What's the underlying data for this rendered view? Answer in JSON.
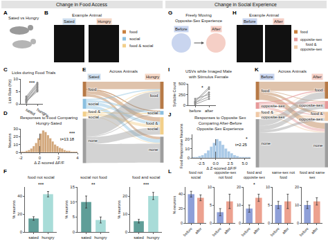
{
  "sections": [
    "Change in Food Access",
    "Change in Social Experience"
  ],
  "diagrams": [
    {
      "panel": "A",
      "type": "illustration",
      "title": "Sated vs Hungry"
    },
    {
      "panel": "B",
      "type": "images",
      "title": "Example Animal",
      "conditions": [
        {
          "name": "Sated",
          "color": "#cfdff0"
        },
        {
          "name": "Hungry",
          "color": "#f6d8c6"
        }
      ],
      "legend": [
        {
          "name": "food",
          "color": "#c9803e"
        },
        {
          "name": "social",
          "color": "#8cc0e0"
        },
        {
          "name": "food & social",
          "color": "#f2cf8a"
        }
      ]
    },
    {
      "panel": "G",
      "type": "illustration",
      "title": "Freely Moving Opposite-Sex Experience",
      "conditions": [
        {
          "name": "Before",
          "color": "#c9d5ef"
        },
        {
          "name": "After",
          "color": "#f5cfc6"
        }
      ]
    },
    {
      "panel": "H",
      "type": "images",
      "title": "Example Animal",
      "conditions": [
        {
          "name": "Before",
          "color": "#c9d5ef"
        },
        {
          "name": "After",
          "color": "#f5cfc6"
        }
      ],
      "legend": [
        {
          "name": "food",
          "color": "#c9803e"
        },
        {
          "name": "opposite-sex",
          "color": "#e79a9a"
        },
        {
          "name": "food & opposite-sex",
          "color": "#f0c9a6"
        }
      ]
    }
  ],
  "chart_data": [
    {
      "panel": "C",
      "type": "line",
      "title": "Licks during Food Trials",
      "ylabel": "Lick Rate (Hz)",
      "categories": [
        "sated",
        "hungry"
      ],
      "color": "#8c8c8c",
      "marker": "circle",
      "series": [
        {
          "values": [
            1.5,
            6
          ]
        },
        {
          "values": [
            2,
            7.5
          ]
        },
        {
          "values": [
            1,
            5
          ]
        },
        {
          "values": [
            2.5,
            8
          ]
        },
        {
          "values": [
            0.5,
            6.5
          ]
        },
        {
          "values": [
            1.8,
            7
          ]
        },
        {
          "values": [
            3,
            8.5
          ]
        },
        {
          "values": [
            1.2,
            5.5
          ]
        }
      ],
      "ylim": [
        0,
        10
      ],
      "yticks": [
        0,
        5,
        10
      ],
      "significance": "***"
    },
    {
      "panel": "D",
      "type": "histogram",
      "title": "Responses to Food Comparing Hungry-Sated",
      "xlabel": "Δ Z-scored ΔF/F",
      "ylabel": "Neurons",
      "bins": [
        -2,
        -1.75,
        -1.5,
        -1.25,
        -1,
        -0.75,
        -0.5,
        -0.25,
        0,
        0.25,
        0.5,
        0.75,
        1,
        1.25,
        1.5,
        1.75,
        2,
        2.25,
        2.5,
        2.75,
        3,
        3.25,
        3.5,
        3.75,
        4
      ],
      "counts": [
        1,
        1,
        2,
        3,
        5,
        8,
        12,
        18,
        24,
        28,
        26,
        22,
        18,
        14,
        10,
        8,
        6,
        5,
        3,
        2,
        2,
        1,
        1,
        1
      ],
      "color": "#d2a679",
      "xlim": [
        -2,
        4
      ],
      "xticks": [
        -2,
        0,
        2,
        4
      ],
      "ylim": [
        0,
        30
      ],
      "yticks": [
        0,
        10,
        20,
        30
      ],
      "reference_line": 0,
      "significance": "***",
      "statistic": "t=13.18"
    },
    {
      "panel": "E",
      "type": "sankey",
      "title": "Across Animals",
      "stages": [
        {
          "name": "Sated",
          "color": "#cfdff0"
        },
        {
          "name": "Hungry",
          "color": "#f6d8c6"
        }
      ],
      "nodes": [
        "food",
        "social",
        "food & social",
        "none"
      ],
      "colors": [
        "#b77a47",
        "#8cc0e0",
        "#f2cf8a",
        "#9e9e9e"
      ],
      "flows": {
        "source": [
          0,
          0,
          0,
          0,
          1,
          1,
          1,
          1,
          2,
          2,
          2,
          2,
          3,
          3,
          3,
          3
        ],
        "target": [
          0,
          1,
          2,
          3,
          0,
          1,
          2,
          3,
          0,
          1,
          2,
          3,
          0,
          1,
          2,
          3
        ],
        "values": [
          30,
          2,
          18,
          10,
          5,
          8,
          12,
          15,
          4,
          1,
          12,
          3,
          71,
          4,
          28,
          77
        ]
      }
    },
    {
      "panel": "F",
      "type": "bar",
      "ylabel": "% neurons",
      "categories": [
        "sated",
        "hungry"
      ],
      "colors": [
        "#5f9e98",
        "#a8dcd8"
      ],
      "subplots": [
        {
          "title": "food not social",
          "values": [
            15,
            42
          ],
          "errors": [
            2,
            3
          ],
          "ylim": [
            0,
            50
          ],
          "yticks": [
            0,
            20,
            40
          ],
          "significance": "***"
        },
        {
          "title": "social not food",
          "values": [
            10,
            4
          ],
          "errors": [
            2,
            1
          ],
          "ylim": [
            0,
            15
          ],
          "yticks": [
            0,
            5,
            10,
            15
          ],
          "significance": "**"
        },
        {
          "title": "food and social",
          "values": [
            6,
            20
          ],
          "errors": [
            1,
            2
          ],
          "ylim": [
            0,
            25
          ],
          "yticks": [
            0,
            10,
            20
          ],
          "significance": "***"
        }
      ]
    },
    {
      "panel": "I",
      "type": "line",
      "title": "USVs while Imaged Male with Stimulus Female",
      "ylabel": "Syllable Count",
      "categories": [
        "before",
        "after"
      ],
      "color": "#8c8c8c",
      "marker": "circle",
      "series": [
        {
          "values": [
            50,
            300
          ]
        },
        {
          "values": [
            100,
            420
          ]
        },
        {
          "values": [
            20,
            150
          ]
        },
        {
          "values": [
            150,
            250
          ]
        },
        {
          "values": [
            80,
            380
          ]
        },
        {
          "values": [
            60,
            200
          ]
        }
      ],
      "ylim": [
        0,
        500
      ],
      "yticks": [
        0,
        250,
        500
      ],
      "significance": "*"
    },
    {
      "panel": "J",
      "type": "histogram",
      "title": "Responses to Opposite Sex Comparing After-Before Opposite-Sex Experience",
      "xlabel": "Δ Z-scored ΔF/F",
      "ylabel": "Food Responsive Neurons",
      "bins": [
        -4,
        -3.5,
        -3,
        -2.5,
        -2,
        -1.5,
        -1,
        -0.5,
        0,
        0.5,
        1,
        1.5,
        2,
        2.5,
        3,
        3.5,
        4,
        4.5,
        5,
        5.5,
        6
      ],
      "counts": [
        1,
        1,
        2,
        3,
        5,
        8,
        12,
        16,
        20,
        18,
        14,
        10,
        7,
        5,
        3,
        2,
        1,
        1,
        1,
        1
      ],
      "color": "#a9c9e6",
      "xlim": [
        -4,
        6
      ],
      "xticks": [
        -2.5,
        {
          "value": 0,
          "label": "0.0"
        },
        2.5,
        {
          "value": 5,
          "label": "5.0"
        }
      ],
      "ylim": [
        0,
        25
      ],
      "yticks": [
        0,
        10,
        20
      ],
      "reference_line": 0,
      "significance": "*",
      "statistic": "t=2.25"
    },
    {
      "panel": "K",
      "type": "sankey",
      "title": "Across Animals",
      "stages": [
        {
          "name": "Before",
          "color": "#c9d5ef"
        },
        {
          "name": "After",
          "color": "#f5cfc6"
        }
      ],
      "nodes": [
        "food",
        "opposite-sex",
        "food & opposite-sex",
        "none"
      ],
      "colors": [
        "#b77a47",
        "#e79a9a",
        "#f0c9a6",
        "#9e9e9e"
      ],
      "flows": {
        "source": [
          0,
          0,
          0,
          0,
          1,
          1,
          1,
          1,
          2,
          2,
          2,
          2,
          3,
          3,
          3,
          3
        ],
        "target": [
          0,
          1,
          2,
          3,
          0,
          1,
          2,
          3,
          0,
          1,
          2,
          3,
          0,
          1,
          2,
          3
        ],
        "values": [
          35,
          3,
          10,
          22,
          2,
          8,
          5,
          10,
          3,
          2,
          10,
          5,
          25,
          17,
          10,
          133
        ]
      }
    },
    {
      "panel": "L",
      "type": "bar",
      "ylabel": "% neurons",
      "categories": [
        "before",
        "after"
      ],
      "colors": [
        "#8e9fd8",
        "#eca18f"
      ],
      "subplots": [
        {
          "title": "food not social",
          "values": [
            40,
            35
          ],
          "errors": [
            4,
            4
          ],
          "ylim": [
            0,
            50
          ],
          "yticks": [
            0,
            20,
            40
          ]
        },
        {
          "title": "opposite-sex not food",
          "values": [
            3,
            6
          ],
          "errors": [
            1,
            2
          ],
          "ylim": [
            0,
            10
          ],
          "yticks": [
            0,
            5,
            10
          ]
        },
        {
          "title": "food and opposite sex",
          "values": [
            8,
            14
          ],
          "errors": [
            2,
            2
          ],
          "ylim": [
            0,
            20
          ],
          "yticks": [
            0,
            10,
            20
          ],
          "significance": "*"
        },
        {
          "title": "same-sex not food",
          "values": [
            5,
            6
          ],
          "errors": [
            1,
            2
          ],
          "ylim": [
            0,
            10
          ],
          "yticks": [
            0,
            5,
            10
          ]
        },
        {
          "title": "food and same sex",
          "values": [
            10,
            12
          ],
          "errors": [
            2,
            2
          ],
          "ylim": [
            0,
            20
          ],
          "yticks": [
            0,
            10,
            20
          ]
        }
      ]
    }
  ]
}
